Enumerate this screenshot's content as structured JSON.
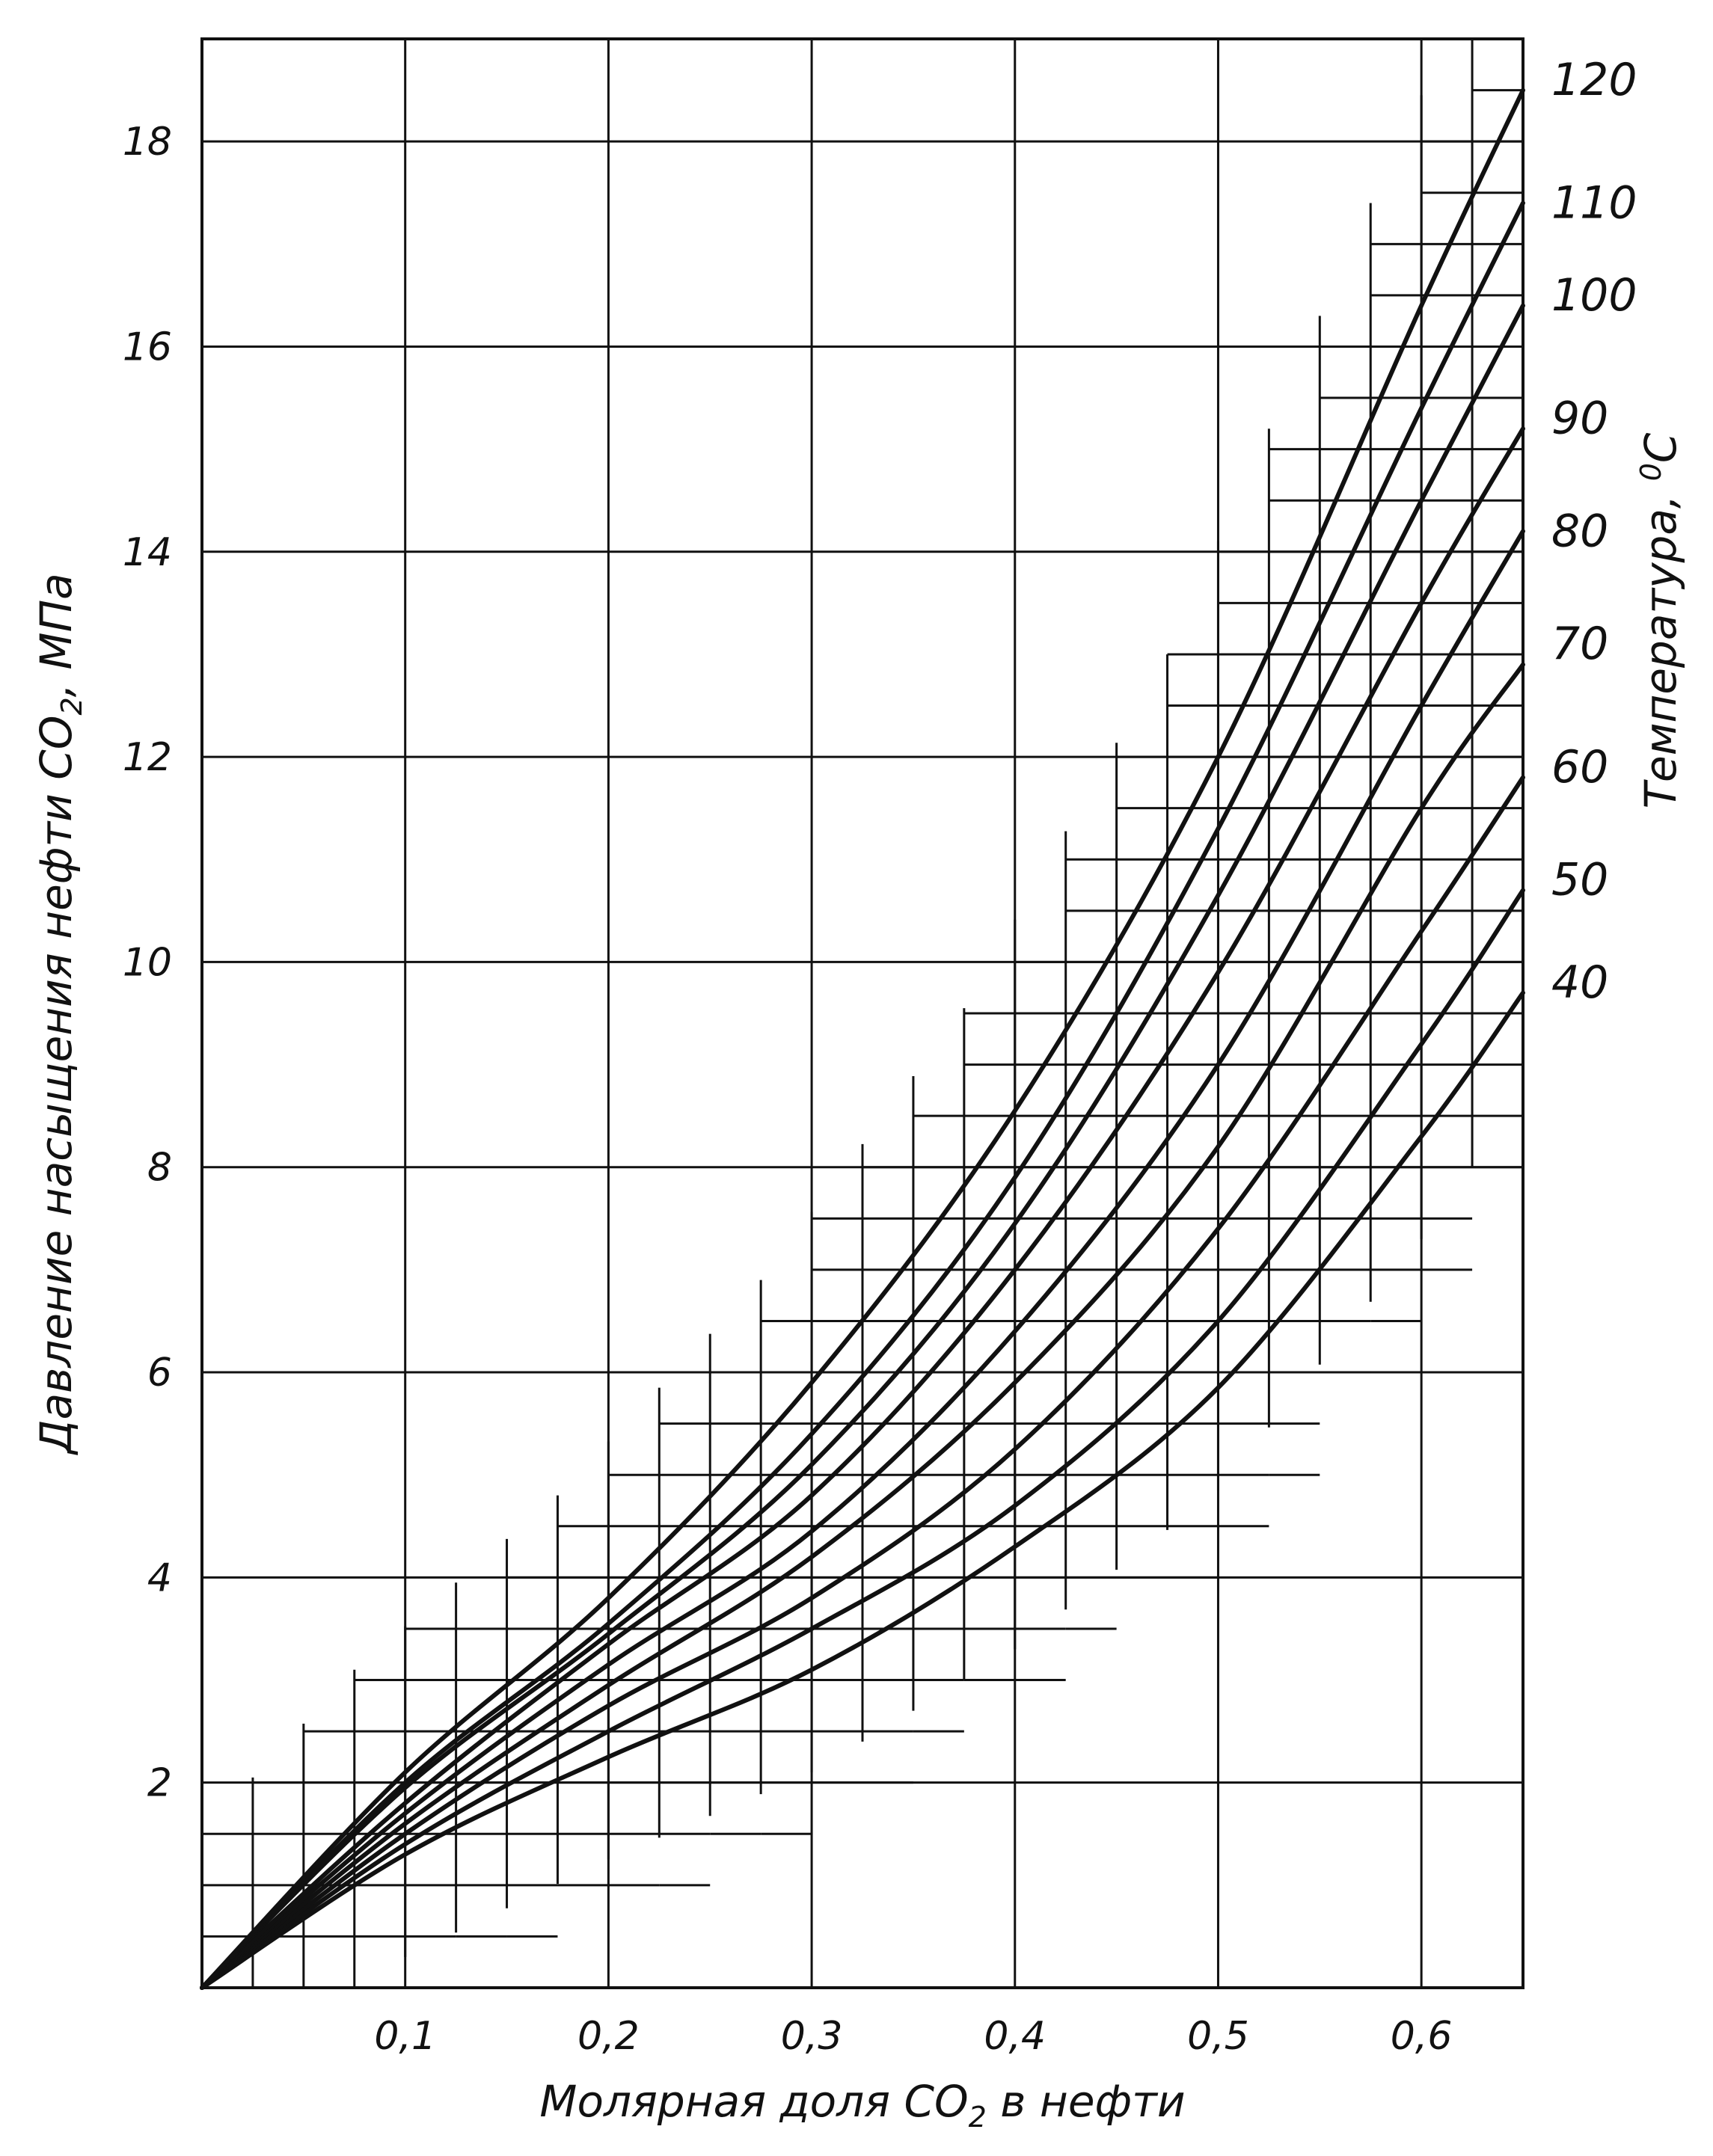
{
  "chart_data": {
    "type": "line",
    "xlabel_main": "Молярная доля CO",
    "xlabel_sub": "2",
    "xlabel_tail": " в нефти",
    "ylabel_main": "Давление насыщения нефти CO",
    "ylabel_sub": "2",
    "ylabel_tail": ", МПа",
    "right_label_main": "Температура, ",
    "right_label_sup": "0",
    "right_label_tail": "C",
    "xlim": [
      0.0,
      0.65
    ],
    "ylim": [
      0,
      19
    ],
    "x_ticks": [
      {
        "value": 0.1,
        "label": "0,1"
      },
      {
        "value": 0.2,
        "label": "0,2"
      },
      {
        "value": 0.3,
        "label": "0,3"
      },
      {
        "value": 0.4,
        "label": "0,4"
      },
      {
        "value": 0.5,
        "label": "0,5"
      },
      {
        "value": 0.6,
        "label": "0,6"
      }
    ],
    "y_ticks": [
      {
        "value": 2,
        "label": "2"
      },
      {
        "value": 4,
        "label": "4"
      },
      {
        "value": 6,
        "label": "6"
      },
      {
        "value": 8,
        "label": "8"
      },
      {
        "value": 10,
        "label": "10"
      },
      {
        "value": 12,
        "label": "12"
      },
      {
        "value": 14,
        "label": "14"
      },
      {
        "value": 16,
        "label": "16"
      },
      {
        "value": 18,
        "label": "18"
      }
    ],
    "series": [
      {
        "name": "40",
        "label_y": 9.8,
        "x": [
          0.0,
          0.1,
          0.2,
          0.3,
          0.4,
          0.5,
          0.6,
          0.65
        ],
        "y": [
          0.0,
          1.3,
          2.25,
          3.1,
          4.3,
          5.85,
          8.3,
          9.7
        ]
      },
      {
        "name": "50",
        "label_y": 10.8,
        "x": [
          0.0,
          0.1,
          0.2,
          0.3,
          0.4,
          0.5,
          0.6,
          0.65
        ],
        "y": [
          0.0,
          1.4,
          2.5,
          3.5,
          4.7,
          6.5,
          9.2,
          10.7
        ]
      },
      {
        "name": "60",
        "label_y": 11.9,
        "x": [
          0.0,
          0.1,
          0.2,
          0.3,
          0.4,
          0.5,
          0.6,
          0.65
        ],
        "y": [
          0.0,
          1.5,
          2.75,
          3.8,
          5.25,
          7.4,
          10.3,
          11.8
        ]
      },
      {
        "name": "70",
        "label_y": 13.1,
        "x": [
          0.0,
          0.1,
          0.2,
          0.3,
          0.4,
          0.5,
          0.6,
          0.65
        ],
        "y": [
          0.0,
          1.6,
          2.95,
          4.2,
          5.9,
          8.2,
          11.5,
          12.9
        ]
      },
      {
        "name": "80",
        "label_y": 14.2,
        "x": [
          0.0,
          0.1,
          0.2,
          0.3,
          0.4,
          0.5,
          0.6,
          0.65
        ],
        "y": [
          0.0,
          1.7,
          3.15,
          4.45,
          6.4,
          9.0,
          12.5,
          14.2
        ]
      },
      {
        "name": "90",
        "label_y": 15.3,
        "x": [
          0.0,
          0.1,
          0.2,
          0.3,
          0.4,
          0.5,
          0.6,
          0.65
        ],
        "y": [
          0.0,
          1.8,
          3.35,
          4.8,
          7.0,
          9.9,
          13.5,
          15.2
        ]
      },
      {
        "name": "100",
        "label_y": 16.5,
        "x": [
          0.0,
          0.1,
          0.2,
          0.3,
          0.4,
          0.5,
          0.6,
          0.65
        ],
        "y": [
          0.0,
          1.95,
          3.45,
          5.1,
          7.45,
          10.65,
          14.5,
          16.4
        ]
      },
      {
        "name": "110",
        "label_y": 17.4,
        "x": [
          0.0,
          0.1,
          0.2,
          0.3,
          0.4,
          0.5,
          0.6,
          0.65
        ],
        "y": [
          0.0,
          2.0,
          3.55,
          5.4,
          7.9,
          11.3,
          15.4,
          17.4
        ]
      },
      {
        "name": "120",
        "label_y": 18.6,
        "x": [
          0.0,
          0.1,
          0.2,
          0.3,
          0.4,
          0.5,
          0.6,
          0.65
        ],
        "y": [
          0.0,
          2.1,
          3.8,
          5.9,
          8.55,
          12.0,
          16.4,
          18.5
        ]
      }
    ],
    "grid": true
  }
}
